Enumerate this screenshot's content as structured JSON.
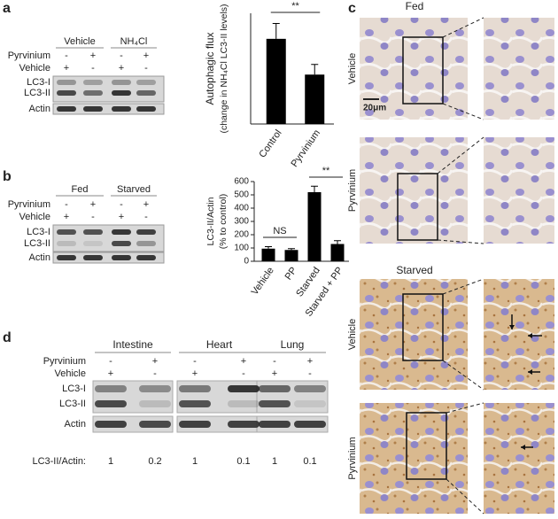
{
  "panel_a": {
    "label": "a",
    "groups": [
      "Vehicle",
      "NH₄Cl"
    ],
    "treatments": [
      {
        "name": "Pyrvinium",
        "signs": [
          "-",
          "+",
          "-",
          "+"
        ]
      },
      {
        "name": "Vehicle",
        "signs": [
          "+",
          "-",
          "+",
          "-"
        ]
      }
    ],
    "bands": [
      "LC3-I",
      "LC3-II",
      "Actin"
    ]
  },
  "panel_b": {
    "label": "b",
    "groups": [
      "Fed",
      "Starved"
    ],
    "treatments": [
      {
        "name": "Pyrvinium",
        "signs": [
          "-",
          "+",
          "-",
          "+"
        ]
      },
      {
        "name": "Vehicle",
        "signs": [
          "+",
          "-",
          "+",
          "-"
        ]
      }
    ],
    "bands": [
      "LC3-I",
      "LC3-II",
      "Actin"
    ]
  },
  "panel_c": {
    "label": "c",
    "conditions": [
      {
        "title": "Fed",
        "rows": [
          "Vehicle",
          "Pyrvinium"
        ]
      },
      {
        "title": "Starved",
        "rows": [
          "Vehicle",
          "Pyrvinium"
        ]
      }
    ],
    "scale_bar": "20μm"
  },
  "panel_d": {
    "label": "d",
    "tissues": [
      "Intestine",
      "Heart",
      "Lung"
    ],
    "treatments": [
      {
        "name": "Pyrvinium",
        "signs": [
          "-",
          "+",
          "-",
          "+",
          "-",
          "+"
        ]
      },
      {
        "name": "Vehicle",
        "signs": [
          "+",
          "-",
          "+",
          "-",
          "+",
          "-"
        ]
      }
    ],
    "bands": [
      "LC3-I",
      "LC3-II",
      "Actin"
    ],
    "ratio_label": "LC3-II/Actin:",
    "ratios": [
      1,
      0.2,
      1,
      0.1,
      1,
      0.1
    ]
  },
  "chart_data": [
    {
      "type": "bar",
      "ylabel": [
        "Autophagic flux",
        "(change in NH₄Cl LC3-II levels)"
      ],
      "categories": [
        "Control",
        "Pyrvinium"
      ],
      "values": [
        100,
        58
      ],
      "errors": [
        18,
        12
      ],
      "color": "#000000",
      "ylim": [
        0,
        130
      ],
      "annotations": [
        "**"
      ]
    },
    {
      "type": "bar",
      "ylabel": [
        "LC3-II/Actin",
        "(% to control)"
      ],
      "categories": [
        "Vehicle",
        "PP",
        "Starved",
        "Starved + PP"
      ],
      "values": [
        95,
        85,
        520,
        130
      ],
      "errors": [
        15,
        10,
        45,
        25
      ],
      "color": "#000000",
      "ylim": [
        0,
        600
      ],
      "yticks": [
        0,
        100,
        200,
        300,
        400,
        500,
        600
      ],
      "annotations": [
        "NS",
        "**"
      ]
    }
  ]
}
